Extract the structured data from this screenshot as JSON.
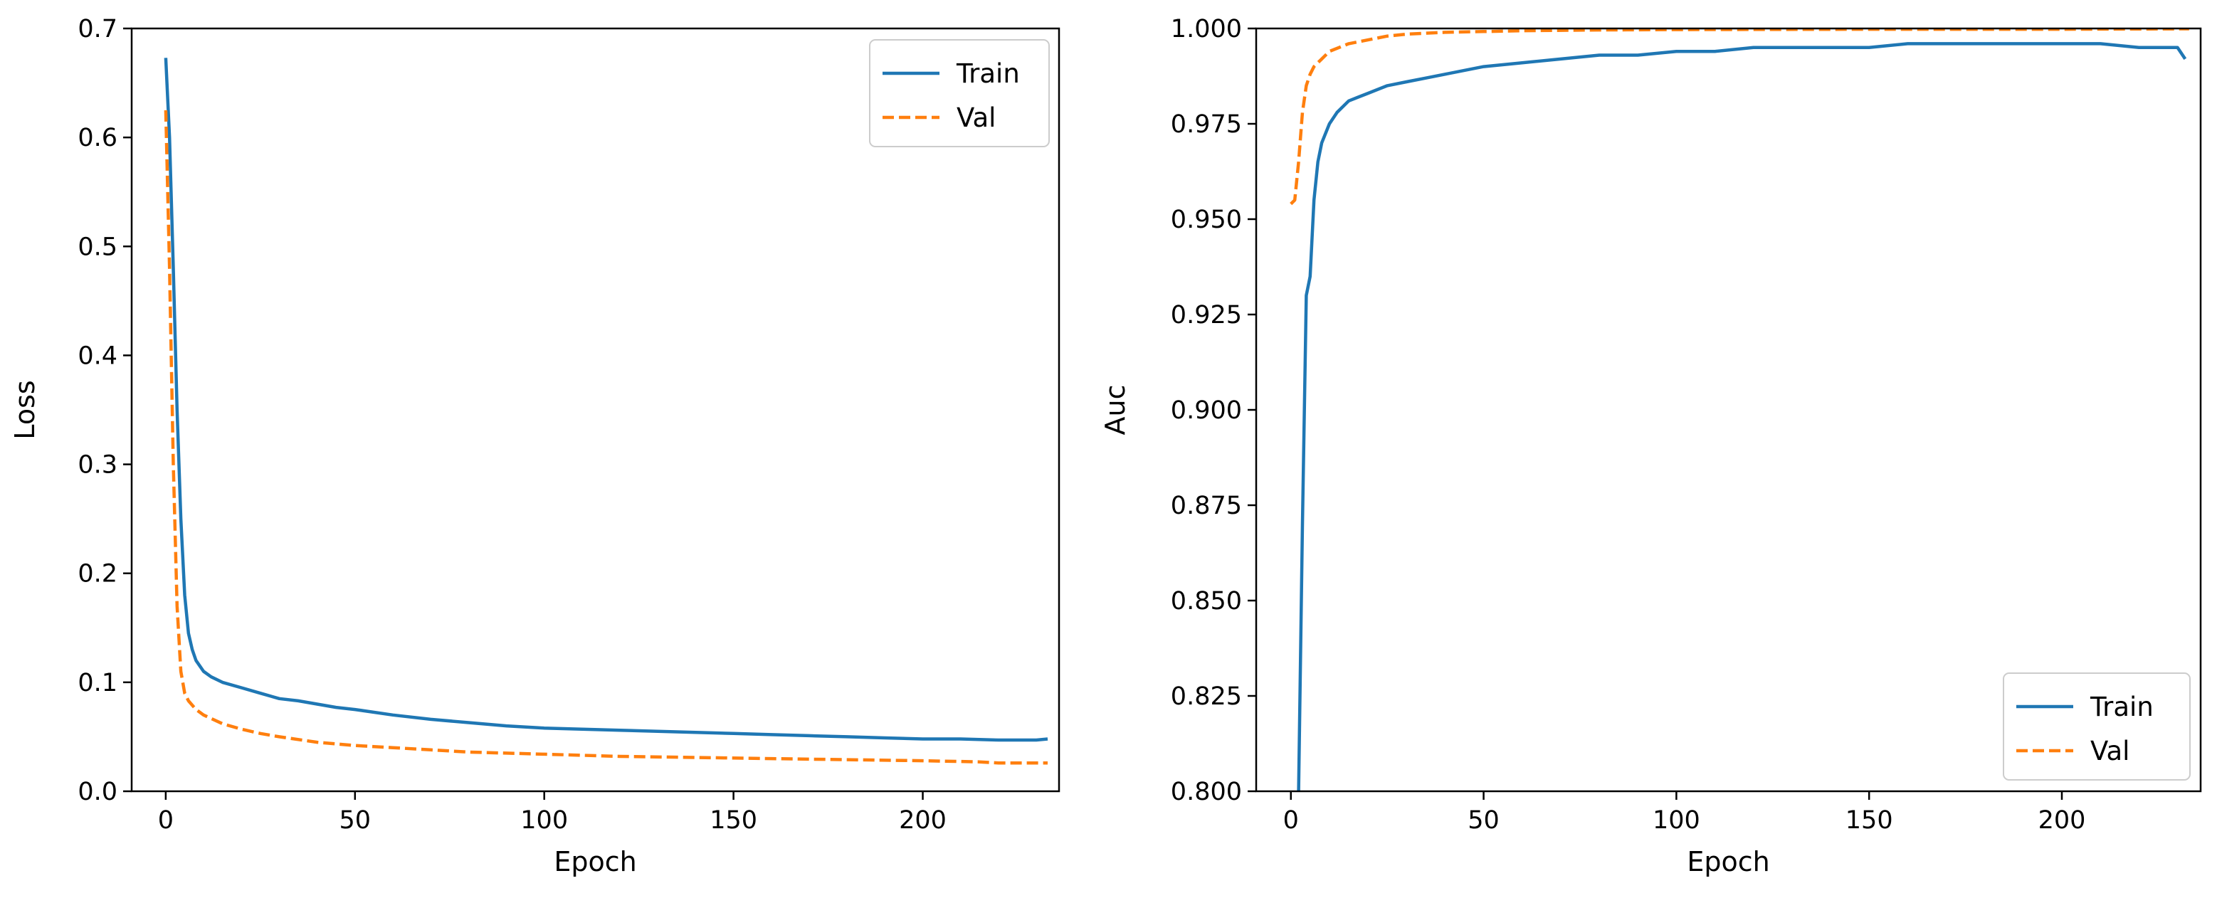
{
  "chart_data": [
    {
      "type": "line",
      "title": "",
      "xlabel": "Epoch",
      "ylabel": "Loss",
      "xlim": [
        -9,
        236
      ],
      "ylim": [
        0.0,
        0.7
      ],
      "xticks": [
        0,
        50,
        100,
        150,
        200
      ],
      "yticks": [
        0.0,
        0.1,
        0.2,
        0.3,
        0.4,
        0.5,
        0.6,
        0.7
      ],
      "ytick_labels": [
        "0.0",
        "0.1",
        "0.2",
        "0.3",
        "0.4",
        "0.5",
        "0.6",
        "0.7"
      ],
      "grid": false,
      "legend_position": "top-right",
      "series": [
        {
          "name": "Train",
          "color": "#1f77b4",
          "style": "solid",
          "x": [
            0,
            1,
            2,
            3,
            4,
            5,
            6,
            7,
            8,
            10,
            12,
            15,
            20,
            25,
            30,
            35,
            40,
            45,
            50,
            60,
            70,
            80,
            90,
            100,
            110,
            120,
            130,
            140,
            150,
            160,
            170,
            180,
            190,
            200,
            210,
            220,
            230,
            233
          ],
          "y": [
            0.673,
            0.6,
            0.48,
            0.35,
            0.25,
            0.18,
            0.145,
            0.13,
            0.12,
            0.11,
            0.105,
            0.1,
            0.095,
            0.09,
            0.085,
            0.083,
            0.08,
            0.077,
            0.075,
            0.07,
            0.066,
            0.063,
            0.06,
            0.058,
            0.057,
            0.056,
            0.055,
            0.054,
            0.053,
            0.052,
            0.051,
            0.05,
            0.049,
            0.048,
            0.048,
            0.047,
            0.047,
            0.048
          ]
        },
        {
          "name": "Val",
          "color": "#ff7f0e",
          "style": "dashed",
          "x": [
            0,
            1,
            2,
            3,
            4,
            5,
            6,
            8,
            10,
            15,
            20,
            25,
            30,
            40,
            50,
            60,
            70,
            80,
            90,
            100,
            120,
            140,
            160,
            180,
            200,
            215,
            220,
            233
          ],
          "y": [
            0.625,
            0.48,
            0.3,
            0.17,
            0.11,
            0.09,
            0.083,
            0.075,
            0.07,
            0.062,
            0.057,
            0.053,
            0.05,
            0.045,
            0.042,
            0.04,
            0.038,
            0.036,
            0.035,
            0.034,
            0.032,
            0.031,
            0.03,
            0.029,
            0.028,
            0.027,
            0.026,
            0.026
          ]
        }
      ]
    },
    {
      "type": "line",
      "title": "",
      "xlabel": "Epoch",
      "ylabel": "Auc",
      "xlim": [
        -9,
        236
      ],
      "ylim": [
        0.8,
        1.0
      ],
      "xticks": [
        0,
        50,
        100,
        150,
        200
      ],
      "yticks": [
        0.8,
        0.825,
        0.85,
        0.875,
        0.9,
        0.925,
        0.95,
        0.975,
        1.0
      ],
      "ytick_labels": [
        "0.800",
        "0.825",
        "0.850",
        "0.875",
        "0.900",
        "0.925",
        "0.950",
        "0.975",
        "1.000"
      ],
      "grid": false,
      "legend_position": "bottom-right",
      "series": [
        {
          "name": "Train",
          "color": "#1f77b4",
          "style": "solid",
          "x": [
            2,
            3,
            4,
            5,
            6,
            7,
            8,
            10,
            12,
            15,
            20,
            25,
            30,
            35,
            40,
            50,
            60,
            70,
            80,
            90,
            100,
            110,
            120,
            130,
            140,
            150,
            160,
            170,
            180,
            190,
            200,
            210,
            220,
            230,
            232
          ],
          "y": [
            0.8,
            0.87,
            0.93,
            0.935,
            0.955,
            0.965,
            0.97,
            0.975,
            0.978,
            0.981,
            0.983,
            0.985,
            0.986,
            0.987,
            0.988,
            0.99,
            0.991,
            0.992,
            0.993,
            0.993,
            0.994,
            0.994,
            0.995,
            0.995,
            0.995,
            0.995,
            0.996,
            0.996,
            0.996,
            0.996,
            0.996,
            0.996,
            0.995,
            0.995,
            0.992
          ]
        },
        {
          "name": "Val",
          "color": "#ff7f0e",
          "style": "dashed",
          "x": [
            0,
            1,
            2,
            3,
            4,
            5,
            6,
            8,
            10,
            15,
            20,
            25,
            30,
            40,
            50,
            60,
            80,
            100,
            150,
            200,
            233
          ],
          "y": [
            0.954,
            0.955,
            0.965,
            0.978,
            0.985,
            0.988,
            0.99,
            0.992,
            0.994,
            0.996,
            0.997,
            0.998,
            0.9985,
            0.999,
            0.9992,
            0.9994,
            0.9996,
            0.9997,
            0.9998,
            0.9998,
            0.9999
          ]
        }
      ]
    }
  ]
}
